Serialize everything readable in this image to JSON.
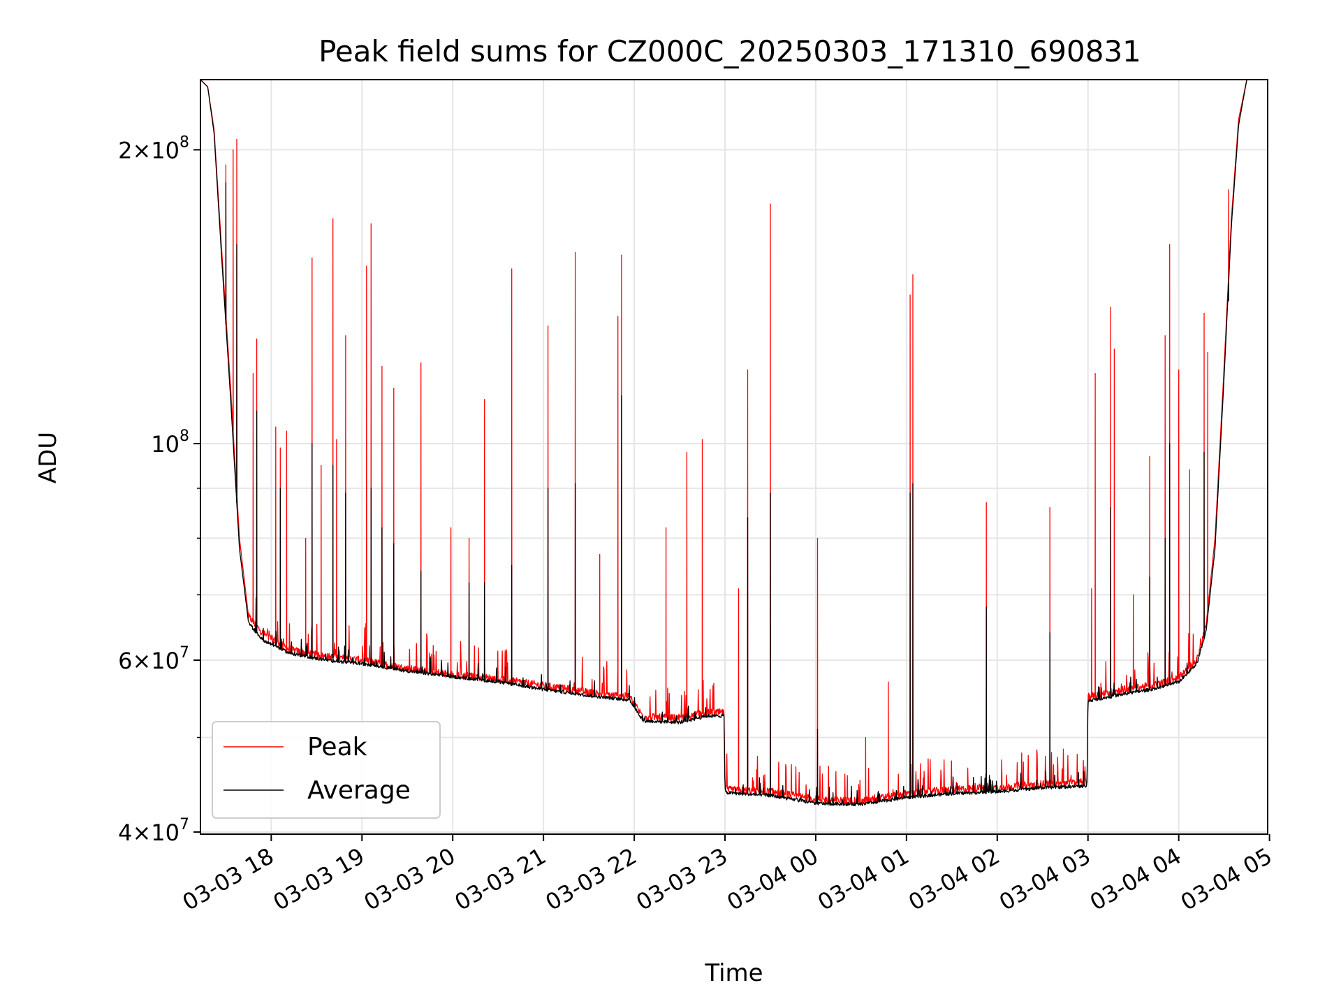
{
  "chart_data": {
    "type": "line",
    "title": "Peak field sums for CZ000C_20250303_171310_690831",
    "xlabel": "Time",
    "ylabel": "ADU",
    "yscale": "log",
    "xlim_hours": [
      17.22,
      28.98
    ],
    "ylim": [
      39800000,
      236000000
    ],
    "grid": true,
    "legend_position": "lower-left",
    "x_ticks": [
      {
        "hours": 18,
        "label": "03-03 18"
      },
      {
        "hours": 19,
        "label": "03-03 19"
      },
      {
        "hours": 20,
        "label": "03-03 20"
      },
      {
        "hours": 21,
        "label": "03-03 21"
      },
      {
        "hours": 22,
        "label": "03-03 22"
      },
      {
        "hours": 23,
        "label": "03-03 23"
      },
      {
        "hours": 24,
        "label": "03-04 00"
      },
      {
        "hours": 25,
        "label": "03-04 01"
      },
      {
        "hours": 26,
        "label": "03-04 02"
      },
      {
        "hours": 27,
        "label": "03-04 03"
      },
      {
        "hours": 28,
        "label": "03-04 04"
      },
      {
        "hours": 29,
        "label": "03-04 05"
      }
    ],
    "y_ticks": [
      {
        "value": 40000000,
        "base": "4",
        "exp": "7"
      },
      {
        "value": 60000000,
        "base": "6",
        "exp": "7"
      },
      {
        "value": 100000000,
        "base": "",
        "exp": "8"
      },
      {
        "value": 200000000,
        "base": "2",
        "exp": "8"
      }
    ],
    "y_minor_grid": [
      50000000,
      70000000,
      80000000,
      90000000
    ],
    "series": [
      {
        "name": "Peak",
        "color": "#ff0000",
        "baseline": [
          [
            17.22,
            236000000
          ],
          [
            17.3,
            232000000
          ],
          [
            17.37,
            210000000
          ],
          [
            17.45,
            160000000
          ],
          [
            17.55,
            115000000
          ],
          [
            17.65,
            80000000
          ],
          [
            17.75,
            66500000
          ],
          [
            17.9,
            64000000
          ],
          [
            18.2,
            61500000
          ],
          [
            18.6,
            60500000
          ],
          [
            19.0,
            60000000
          ],
          [
            19.5,
            58800000
          ],
          [
            20.0,
            58000000
          ],
          [
            20.5,
            57400000
          ],
          [
            21.0,
            56500000
          ],
          [
            21.5,
            55600000
          ],
          [
            21.95,
            55000000
          ],
          [
            22.1,
            52500000
          ],
          [
            22.5,
            52300000
          ],
          [
            22.8,
            53000000
          ],
          [
            22.99,
            53000000
          ],
          [
            23.0,
            44200000
          ],
          [
            23.5,
            44000000
          ],
          [
            24.0,
            43200000
          ],
          [
            24.5,
            43000000
          ],
          [
            25.0,
            43800000
          ],
          [
            25.5,
            44200000
          ],
          [
            26.0,
            44400000
          ],
          [
            26.5,
            44800000
          ],
          [
            26.99,
            45000000
          ],
          [
            27.0,
            55000000
          ],
          [
            27.4,
            56000000
          ],
          [
            27.7,
            56500000
          ],
          [
            28.0,
            57500000
          ],
          [
            28.2,
            60000000
          ],
          [
            28.3,
            65000000
          ],
          [
            28.4,
            80000000
          ],
          [
            28.5,
            120000000
          ],
          [
            28.58,
            170000000
          ],
          [
            28.66,
            215000000
          ],
          [
            28.75,
            236000000
          ],
          [
            28.98,
            236000000
          ]
        ],
        "spikes": [
          [
            17.5,
            193000000
          ],
          [
            17.58,
            200000000
          ],
          [
            17.62,
            205000000
          ],
          [
            17.8,
            118000000
          ],
          [
            17.84,
            128000000
          ],
          [
            18.05,
            104000000
          ],
          [
            18.1,
            99000000
          ],
          [
            18.17,
            103000000
          ],
          [
            18.38,
            80000000
          ],
          [
            18.45,
            155000000
          ],
          [
            18.55,
            95000000
          ],
          [
            18.68,
            170000000
          ],
          [
            18.72,
            101000000
          ],
          [
            18.82,
            129000000
          ],
          [
            19.05,
            152000000
          ],
          [
            19.1,
            168000000
          ],
          [
            19.22,
            120000000
          ],
          [
            19.35,
            114000000
          ],
          [
            19.65,
            121000000
          ],
          [
            19.98,
            82000000
          ],
          [
            20.18,
            80000000
          ],
          [
            20.35,
            111000000
          ],
          [
            20.65,
            151000000
          ],
          [
            21.05,
            132000000
          ],
          [
            21.35,
            157000000
          ],
          [
            21.62,
            77000000
          ],
          [
            21.82,
            135000000
          ],
          [
            21.86,
            156000000
          ],
          [
            22.35,
            82000000
          ],
          [
            22.58,
            98000000
          ],
          [
            22.75,
            101000000
          ],
          [
            23.15,
            71000000
          ],
          [
            23.25,
            119000000
          ],
          [
            23.5,
            176000000
          ],
          [
            24.02,
            80000000
          ],
          [
            24.55,
            50000000
          ],
          [
            24.8,
            57000000
          ],
          [
            25.04,
            142000000
          ],
          [
            25.07,
            149000000
          ],
          [
            25.88,
            87000000
          ],
          [
            26.58,
            86000000
          ],
          [
            27.04,
            71000000
          ],
          [
            27.08,
            118000000
          ],
          [
            27.25,
            138000000
          ],
          [
            27.29,
            125000000
          ],
          [
            27.5,
            70000000
          ],
          [
            27.68,
            97000000
          ],
          [
            27.85,
            129000000
          ],
          [
            27.9,
            160000000
          ],
          [
            28.0,
            119000000
          ],
          [
            28.12,
            94000000
          ],
          [
            28.28,
            136000000
          ],
          [
            28.32,
            124000000
          ],
          [
            28.55,
            182000000
          ]
        ]
      },
      {
        "name": "Average",
        "color": "#000000",
        "baseline": [
          [
            17.22,
            236000000
          ],
          [
            17.3,
            232000000
          ],
          [
            17.37,
            208000000
          ],
          [
            17.45,
            157000000
          ],
          [
            17.55,
            112000000
          ],
          [
            17.65,
            78000000
          ],
          [
            17.75,
            65500000
          ],
          [
            17.9,
            63000000
          ],
          [
            18.2,
            61000000
          ],
          [
            18.6,
            60000000
          ],
          [
            19.0,
            59500000
          ],
          [
            19.5,
            58500000
          ],
          [
            20.0,
            57700000
          ],
          [
            20.5,
            57000000
          ],
          [
            21.0,
            56000000
          ],
          [
            21.5,
            55200000
          ],
          [
            21.95,
            54600000
          ],
          [
            22.1,
            52000000
          ],
          [
            22.5,
            51800000
          ],
          [
            22.8,
            52600000
          ],
          [
            22.99,
            52600000
          ],
          [
            23.0,
            43900000
          ],
          [
            23.5,
            43600000
          ],
          [
            24.0,
            42800000
          ],
          [
            24.5,
            42700000
          ],
          [
            25.0,
            43400000
          ],
          [
            25.5,
            43800000
          ],
          [
            26.0,
            44000000
          ],
          [
            26.5,
            44400000
          ],
          [
            26.99,
            44600000
          ],
          [
            27.0,
            54500000
          ],
          [
            27.4,
            55400000
          ],
          [
            27.7,
            56000000
          ],
          [
            28.0,
            57000000
          ],
          [
            28.2,
            59500000
          ],
          [
            28.3,
            64000000
          ],
          [
            28.4,
            78000000
          ],
          [
            28.5,
            117000000
          ],
          [
            28.58,
            167000000
          ],
          [
            28.66,
            212000000
          ],
          [
            28.75,
            236000000
          ],
          [
            28.98,
            236000000
          ]
        ],
        "spikes": [
          [
            17.5,
            185000000
          ],
          [
            17.62,
            160000000
          ],
          [
            17.84,
            108000000
          ],
          [
            18.1,
            90000000
          ],
          [
            18.45,
            100000000
          ],
          [
            18.68,
            95000000
          ],
          [
            18.82,
            89000000
          ],
          [
            19.1,
            90000000
          ],
          [
            19.22,
            82000000
          ],
          [
            19.35,
            79000000
          ],
          [
            19.65,
            74000000
          ],
          [
            20.18,
            72000000
          ],
          [
            20.35,
            72000000
          ],
          [
            20.65,
            75000000
          ],
          [
            21.05,
            90000000
          ],
          [
            21.35,
            91000000
          ],
          [
            21.86,
            112000000
          ],
          [
            23.25,
            84000000
          ],
          [
            23.5,
            89000000
          ],
          [
            24.02,
            51000000
          ],
          [
            25.04,
            89000000
          ],
          [
            25.07,
            91000000
          ],
          [
            25.88,
            68000000
          ],
          [
            26.58,
            64000000
          ],
          [
            27.25,
            86000000
          ],
          [
            27.68,
            73000000
          ],
          [
            27.85,
            80000000
          ],
          [
            27.9,
            100000000
          ],
          [
            28.28,
            98000000
          ],
          [
            28.55,
            140000000
          ]
        ]
      }
    ]
  }
}
